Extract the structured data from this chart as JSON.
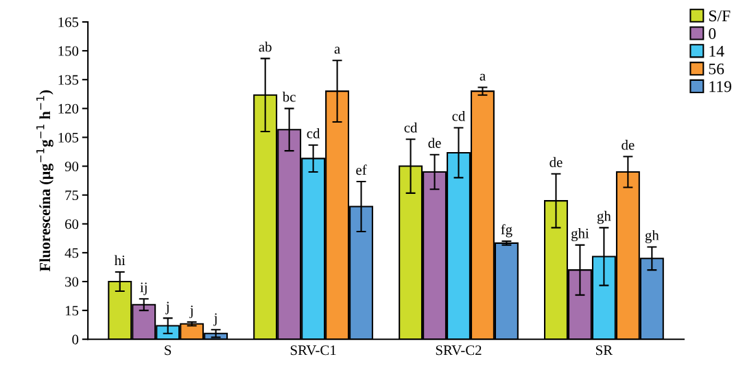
{
  "chart_data": {
    "type": "bar",
    "ylabel": "Fluoresceína (µg$^{−1}$g$^{−1}$ h$^{−1}$)",
    "categories": [
      "S",
      "SRV-C1",
      "SRV-C2",
      "SR"
    ],
    "ylim": [
      0,
      165
    ],
    "yticks": [
      0,
      15,
      30,
      45,
      60,
      75,
      90,
      105,
      120,
      135,
      150,
      165
    ],
    "legend": "top right",
    "grid": false,
    "series": [
      {
        "name": "S/F",
        "color": "#cddc2b",
        "values": [
          30,
          127,
          90,
          72
        ],
        "errors": [
          5,
          19,
          14,
          14
        ],
        "value_labels": [
          "hi",
          "ab",
          "cd",
          "de"
        ]
      },
      {
        "name": "0",
        "color": "#a570ad",
        "values": [
          18,
          109,
          87,
          36
        ],
        "errors": [
          3,
          11,
          9,
          13
        ],
        "value_labels": [
          "ij",
          "bc",
          "de",
          "ghi"
        ]
      },
      {
        "name": "14",
        "color": "#46c8f2",
        "values": [
          7,
          94,
          97,
          43
        ],
        "errors": [
          4,
          7,
          13,
          15
        ],
        "value_labels": [
          "j",
          "cd",
          "cd",
          "gh"
        ]
      },
      {
        "name": "56",
        "color": "#f79834",
        "values": [
          8,
          129,
          129,
          87
        ],
        "errors": [
          1,
          16,
          2,
          8
        ],
        "value_labels": [
          "j",
          "a",
          "a",
          "de"
        ]
      },
      {
        "name": "119",
        "color": "#5a96d2",
        "values": [
          3,
          69,
          50,
          42
        ],
        "errors": [
          2,
          13,
          1,
          6
        ],
        "value_labels": [
          "j",
          "ef",
          "fg",
          "gh"
        ]
      }
    ]
  }
}
